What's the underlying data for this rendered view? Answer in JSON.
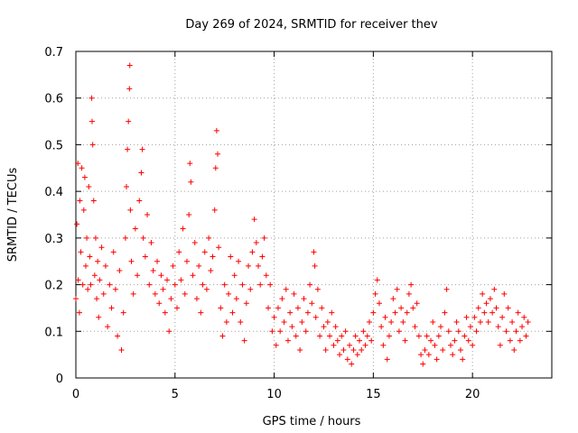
{
  "chart_data": {
    "type": "scatter",
    "title": "Day 269 of 2024, SRMTID for receiver thev",
    "xlabel": "GPS time / hours",
    "ylabel": "SRMTID / TECUs",
    "xlim": [
      0,
      24
    ],
    "ylim": [
      0,
      0.7
    ],
    "xticks": [
      "0",
      "5",
      "10",
      "15",
      "20"
    ],
    "yticks": [
      "0",
      "0.1",
      "0.2",
      "0.3",
      "0.4",
      "0.5",
      "0.6",
      "0.7"
    ],
    "grid": true,
    "marker": "+",
    "color": "#ff0000",
    "series": [
      {
        "name": "SRMTID",
        "points": [
          [
            0.0,
            0.17
          ],
          [
            0.05,
            0.33
          ],
          [
            0.1,
            0.46
          ],
          [
            0.12,
            0.21
          ],
          [
            0.18,
            0.14
          ],
          [
            0.2,
            0.38
          ],
          [
            0.25,
            0.27
          ],
          [
            0.3,
            0.45
          ],
          [
            0.35,
            0.2
          ],
          [
            0.4,
            0.36
          ],
          [
            0.45,
            0.43
          ],
          [
            0.5,
            0.24
          ],
          [
            0.55,
            0.3
          ],
          [
            0.6,
            0.19
          ],
          [
            0.65,
            0.41
          ],
          [
            0.7,
            0.26
          ],
          [
            0.75,
            0.2
          ],
          [
            0.8,
            0.6
          ],
          [
            0.82,
            0.55
          ],
          [
            0.85,
            0.5
          ],
          [
            0.9,
            0.38
          ],
          [
            0.95,
            0.22
          ],
          [
            1.0,
            0.3
          ],
          [
            1.05,
            0.17
          ],
          [
            1.1,
            0.25
          ],
          [
            1.15,
            0.13
          ],
          [
            1.2,
            0.21
          ],
          [
            1.3,
            0.28
          ],
          [
            1.4,
            0.18
          ],
          [
            1.5,
            0.24
          ],
          [
            1.6,
            0.11
          ],
          [
            1.7,
            0.2
          ],
          [
            1.8,
            0.15
          ],
          [
            1.9,
            0.27
          ],
          [
            2.0,
            0.19
          ],
          [
            2.1,
            0.09
          ],
          [
            2.2,
            0.23
          ],
          [
            2.3,
            0.06
          ],
          [
            2.4,
            0.14
          ],
          [
            2.5,
            0.3
          ],
          [
            2.55,
            0.41
          ],
          [
            2.6,
            0.49
          ],
          [
            2.65,
            0.55
          ],
          [
            2.7,
            0.62
          ],
          [
            2.72,
            0.67
          ],
          [
            2.75,
            0.36
          ],
          [
            2.8,
            0.25
          ],
          [
            2.9,
            0.18
          ],
          [
            3.0,
            0.32
          ],
          [
            3.1,
            0.22
          ],
          [
            3.2,
            0.38
          ],
          [
            3.3,
            0.44
          ],
          [
            3.35,
            0.49
          ],
          [
            3.4,
            0.3
          ],
          [
            3.5,
            0.26
          ],
          [
            3.6,
            0.35
          ],
          [
            3.7,
            0.2
          ],
          [
            3.8,
            0.29
          ],
          [
            3.9,
            0.23
          ],
          [
            4.0,
            0.18
          ],
          [
            4.1,
            0.25
          ],
          [
            4.2,
            0.16
          ],
          [
            4.3,
            0.22
          ],
          [
            4.4,
            0.19
          ],
          [
            4.5,
            0.14
          ],
          [
            4.6,
            0.21
          ],
          [
            4.7,
            0.1
          ],
          [
            4.8,
            0.17
          ],
          [
            4.9,
            0.24
          ],
          [
            5.0,
            0.2
          ],
          [
            5.1,
            0.15
          ],
          [
            5.2,
            0.27
          ],
          [
            5.3,
            0.21
          ],
          [
            5.4,
            0.32
          ],
          [
            5.5,
            0.18
          ],
          [
            5.6,
            0.25
          ],
          [
            5.7,
            0.35
          ],
          [
            5.75,
            0.46
          ],
          [
            5.8,
            0.42
          ],
          [
            5.9,
            0.22
          ],
          [
            6.0,
            0.29
          ],
          [
            6.1,
            0.17
          ],
          [
            6.2,
            0.24
          ],
          [
            6.3,
            0.14
          ],
          [
            6.4,
            0.2
          ],
          [
            6.5,
            0.27
          ],
          [
            6.6,
            0.19
          ],
          [
            6.7,
            0.3
          ],
          [
            6.8,
            0.23
          ],
          [
            6.9,
            0.26
          ],
          [
            7.0,
            0.36
          ],
          [
            7.05,
            0.45
          ],
          [
            7.1,
            0.53
          ],
          [
            7.15,
            0.48
          ],
          [
            7.2,
            0.28
          ],
          [
            7.3,
            0.15
          ],
          [
            7.4,
            0.09
          ],
          [
            7.5,
            0.2
          ],
          [
            7.6,
            0.12
          ],
          [
            7.7,
            0.18
          ],
          [
            7.8,
            0.26
          ],
          [
            7.9,
            0.14
          ],
          [
            8.0,
            0.22
          ],
          [
            8.1,
            0.17
          ],
          [
            8.2,
            0.25
          ],
          [
            8.3,
            0.12
          ],
          [
            8.4,
            0.2
          ],
          [
            8.5,
            0.08
          ],
          [
            8.6,
            0.16
          ],
          [
            8.7,
            0.24
          ],
          [
            8.8,
            0.19
          ],
          [
            8.9,
            0.27
          ],
          [
            9.0,
            0.34
          ],
          [
            9.1,
            0.29
          ],
          [
            9.2,
            0.24
          ],
          [
            9.3,
            0.2
          ],
          [
            9.4,
            0.26
          ],
          [
            9.5,
            0.3
          ],
          [
            9.6,
            0.22
          ],
          [
            9.7,
            0.15
          ],
          [
            9.8,
            0.2
          ],
          [
            9.9,
            0.1
          ],
          [
            10.0,
            0.13
          ],
          [
            10.1,
            0.07
          ],
          [
            10.2,
            0.15
          ],
          [
            10.3,
            0.1
          ],
          [
            10.4,
            0.17
          ],
          [
            10.5,
            0.12
          ],
          [
            10.6,
            0.19
          ],
          [
            10.7,
            0.08
          ],
          [
            10.8,
            0.14
          ],
          [
            10.9,
            0.11
          ],
          [
            11.0,
            0.18
          ],
          [
            11.1,
            0.09
          ],
          [
            11.2,
            0.15
          ],
          [
            11.3,
            0.06
          ],
          [
            11.4,
            0.12
          ],
          [
            11.5,
            0.17
          ],
          [
            11.6,
            0.1
          ],
          [
            11.7,
            0.14
          ],
          [
            11.8,
            0.2
          ],
          [
            11.9,
            0.16
          ],
          [
            12.0,
            0.27
          ],
          [
            12.05,
            0.24
          ],
          [
            12.1,
            0.13
          ],
          [
            12.2,
            0.19
          ],
          [
            12.3,
            0.09
          ],
          [
            12.4,
            0.15
          ],
          [
            12.5,
            0.11
          ],
          [
            12.6,
            0.06
          ],
          [
            12.7,
            0.12
          ],
          [
            12.8,
            0.09
          ],
          [
            12.9,
            0.14
          ],
          [
            13.0,
            0.07
          ],
          [
            13.1,
            0.11
          ],
          [
            13.2,
            0.08
          ],
          [
            13.3,
            0.05
          ],
          [
            13.4,
            0.09
          ],
          [
            13.5,
            0.06
          ],
          [
            13.6,
            0.1
          ],
          [
            13.7,
            0.04
          ],
          [
            13.8,
            0.07
          ],
          [
            13.9,
            0.03
          ],
          [
            14.0,
            0.06
          ],
          [
            14.1,
            0.09
          ],
          [
            14.2,
            0.05
          ],
          [
            14.3,
            0.08
          ],
          [
            14.4,
            0.06
          ],
          [
            14.5,
            0.1
          ],
          [
            14.6,
            0.07
          ],
          [
            14.7,
            0.09
          ],
          [
            14.8,
            0.12
          ],
          [
            14.9,
            0.08
          ],
          [
            15.0,
            0.14
          ],
          [
            15.1,
            0.18
          ],
          [
            15.2,
            0.21
          ],
          [
            15.3,
            0.16
          ],
          [
            15.4,
            0.11
          ],
          [
            15.5,
            0.07
          ],
          [
            15.6,
            0.13
          ],
          [
            15.7,
            0.04
          ],
          [
            15.8,
            0.09
          ],
          [
            15.9,
            0.12
          ],
          [
            16.0,
            0.17
          ],
          [
            16.1,
            0.14
          ],
          [
            16.2,
            0.19
          ],
          [
            16.3,
            0.1
          ],
          [
            16.4,
            0.15
          ],
          [
            16.5,
            0.12
          ],
          [
            16.6,
            0.08
          ],
          [
            16.7,
            0.14
          ],
          [
            16.8,
            0.18
          ],
          [
            16.9,
            0.2
          ],
          [
            17.0,
            0.15
          ],
          [
            17.1,
            0.11
          ],
          [
            17.2,
            0.16
          ],
          [
            17.3,
            0.09
          ],
          [
            17.4,
            0.05
          ],
          [
            17.5,
            0.03
          ],
          [
            17.6,
            0.06
          ],
          [
            17.7,
            0.09
          ],
          [
            17.8,
            0.05
          ],
          [
            17.9,
            0.08
          ],
          [
            18.0,
            0.12
          ],
          [
            18.1,
            0.07
          ],
          [
            18.2,
            0.04
          ],
          [
            18.3,
            0.09
          ],
          [
            18.4,
            0.11
          ],
          [
            18.5,
            0.06
          ],
          [
            18.6,
            0.14
          ],
          [
            18.7,
            0.19
          ],
          [
            18.8,
            0.1
          ],
          [
            18.9,
            0.07
          ],
          [
            19.0,
            0.05
          ],
          [
            19.1,
            0.08
          ],
          [
            19.2,
            0.12
          ],
          [
            19.3,
            0.1
          ],
          [
            19.4,
            0.06
          ],
          [
            19.5,
            0.04
          ],
          [
            19.6,
            0.09
          ],
          [
            19.7,
            0.13
          ],
          [
            19.8,
            0.08
          ],
          [
            19.9,
            0.11
          ],
          [
            20.0,
            0.07
          ],
          [
            20.1,
            0.13
          ],
          [
            20.2,
            0.1
          ],
          [
            20.3,
            0.15
          ],
          [
            20.4,
            0.12
          ],
          [
            20.5,
            0.18
          ],
          [
            20.6,
            0.14
          ],
          [
            20.7,
            0.16
          ],
          [
            20.8,
            0.12
          ],
          [
            20.9,
            0.17
          ],
          [
            21.0,
            0.14
          ],
          [
            21.1,
            0.19
          ],
          [
            21.2,
            0.15
          ],
          [
            21.3,
            0.11
          ],
          [
            21.4,
            0.07
          ],
          [
            21.5,
            0.13
          ],
          [
            21.6,
            0.18
          ],
          [
            21.7,
            0.1
          ],
          [
            21.8,
            0.15
          ],
          [
            21.9,
            0.08
          ],
          [
            22.0,
            0.12
          ],
          [
            22.1,
            0.06
          ],
          [
            22.2,
            0.1
          ],
          [
            22.3,
            0.14
          ],
          [
            22.4,
            0.08
          ],
          [
            22.5,
            0.11
          ],
          [
            22.6,
            0.13
          ],
          [
            22.7,
            0.09
          ],
          [
            22.8,
            0.12
          ]
        ]
      }
    ]
  }
}
